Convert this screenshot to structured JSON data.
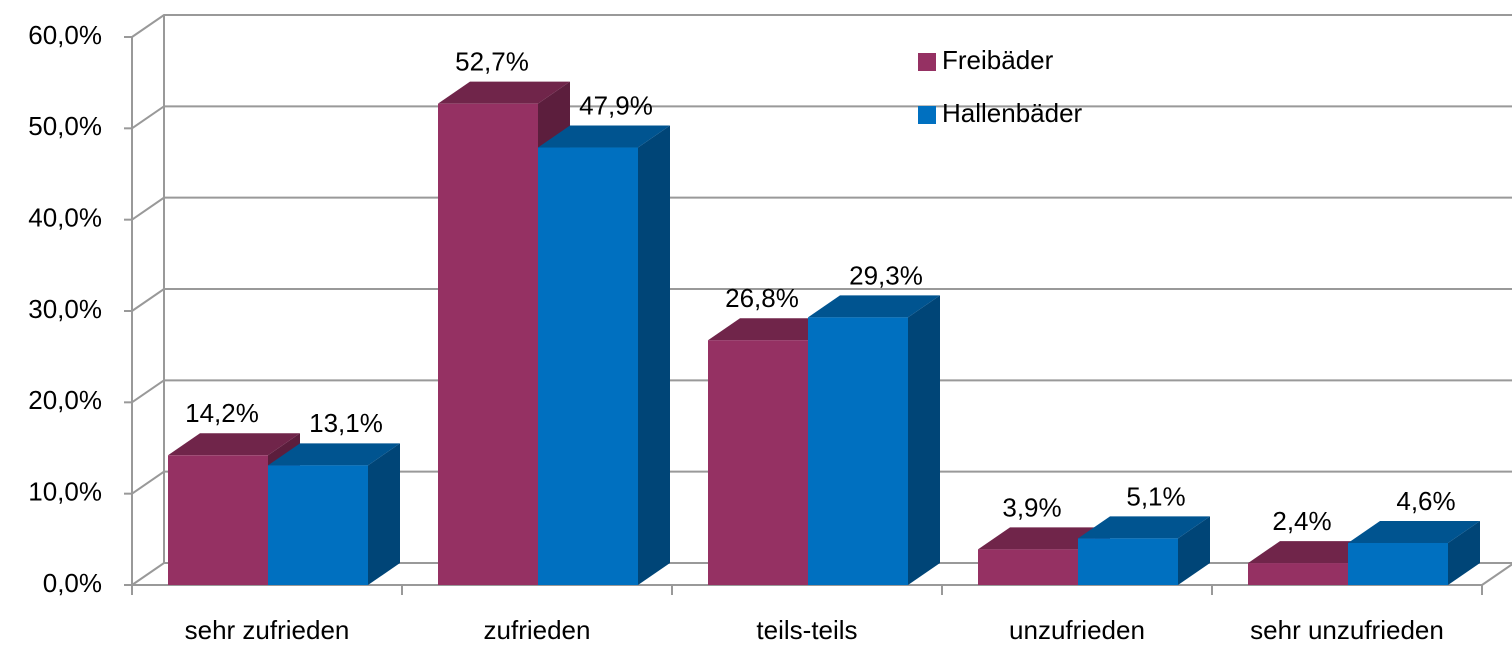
{
  "chart_data": {
    "type": "bar3d",
    "categories": [
      "sehr zufrieden",
      "zufrieden",
      "teils-teils",
      "unzufrieden",
      "sehr unzufrieden"
    ],
    "series": [
      {
        "name": "Freibäder",
        "color": "#953163",
        "values": [
          14.2,
          52.7,
          26.8,
          3.9,
          2.4
        ],
        "value_labels": [
          "14,2%",
          "52,7%",
          "26,8%",
          "3,9%",
          "2,4%"
        ]
      },
      {
        "name": "Hallenbäder",
        "color": "#0070c0",
        "values": [
          13.1,
          47.9,
          29.3,
          5.1,
          4.6
        ],
        "value_labels": [
          "13,1%",
          "47,9%",
          "29,3%",
          "5,1%",
          "4,6%"
        ]
      }
    ],
    "ylim": [
      0,
      60
    ],
    "yticks": [
      {
        "value": 0,
        "label": "0,0%"
      },
      {
        "value": 10,
        "label": "10,0%"
      },
      {
        "value": 20,
        "label": "20,0%"
      },
      {
        "value": 30,
        "label": "30,0%"
      },
      {
        "value": 40,
        "label": "40,0%"
      },
      {
        "value": 50,
        "label": "50,0%"
      },
      {
        "value": 60,
        "label": "60,0%"
      }
    ],
    "grid": true
  }
}
